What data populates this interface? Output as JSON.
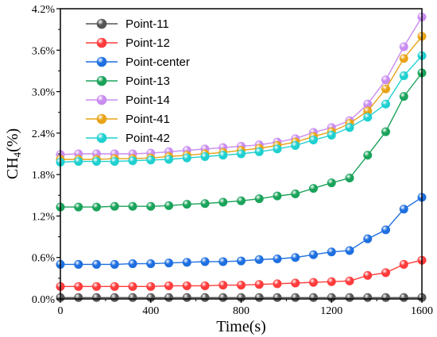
{
  "chart_data": {
    "type": "line",
    "title": "",
    "xlabel": "Time(s)",
    "ylabel_main": "CH",
    "ylabel_sub": "4",
    "ylabel_tail": "(%)",
    "xlim": [
      0,
      1600
    ],
    "ylim": [
      0,
      4.2
    ],
    "xticks": [
      0,
      400,
      800,
      1200,
      1600
    ],
    "yticks": [
      0,
      0.6,
      1.2,
      1.8,
      2.4,
      3.0,
      3.6,
      4.2
    ],
    "ytick_labels": [
      "0.0%",
      "0.6%",
      "1.2%",
      "1.8%",
      "2.4%",
      "3.0%",
      "3.6%",
      "4.2%"
    ],
    "grid": false,
    "legend_position": "top-left",
    "x": [
      0,
      80,
      160,
      240,
      320,
      400,
      480,
      560,
      640,
      720,
      800,
      880,
      960,
      1040,
      1120,
      1200,
      1280,
      1360,
      1440,
      1520,
      1600
    ],
    "series": [
      {
        "name": "Point-11",
        "color": "#555555",
        "values": [
          0.02,
          0.02,
          0.02,
          0.02,
          0.02,
          0.02,
          0.02,
          0.02,
          0.02,
          0.02,
          0.02,
          0.02,
          0.02,
          0.02,
          0.02,
          0.02,
          0.02,
          0.02,
          0.02,
          0.02,
          0.02
        ]
      },
      {
        "name": "Point-12",
        "color": "#ff3b3b",
        "values": [
          0.18,
          0.18,
          0.18,
          0.18,
          0.18,
          0.18,
          0.19,
          0.19,
          0.19,
          0.2,
          0.2,
          0.21,
          0.22,
          0.23,
          0.24,
          0.25,
          0.26,
          0.34,
          0.38,
          0.5,
          0.56
        ]
      },
      {
        "name": "Point-center",
        "color": "#1e6fe0",
        "values": [
          0.5,
          0.5,
          0.5,
          0.5,
          0.51,
          0.51,
          0.52,
          0.53,
          0.54,
          0.54,
          0.55,
          0.57,
          0.58,
          0.6,
          0.64,
          0.68,
          0.7,
          0.87,
          1.0,
          1.3,
          1.47
        ]
      },
      {
        "name": "Point-13",
        "color": "#1aa35a",
        "values": [
          1.33,
          1.33,
          1.33,
          1.34,
          1.34,
          1.34,
          1.35,
          1.37,
          1.38,
          1.4,
          1.42,
          1.45,
          1.49,
          1.52,
          1.6,
          1.68,
          1.75,
          2.08,
          2.42,
          2.93,
          3.27
        ]
      },
      {
        "name": "Point-14",
        "color": "#c98cf0",
        "values": [
          2.09,
          2.1,
          2.1,
          2.1,
          2.1,
          2.11,
          2.13,
          2.15,
          2.17,
          2.19,
          2.21,
          2.23,
          2.27,
          2.32,
          2.41,
          2.48,
          2.58,
          2.82,
          3.17,
          3.65,
          4.08
        ]
      },
      {
        "name": "Point-41",
        "color": "#e8a317",
        "values": [
          2.02,
          2.02,
          2.02,
          2.03,
          2.03,
          2.04,
          2.06,
          2.08,
          2.1,
          2.12,
          2.15,
          2.18,
          2.22,
          2.27,
          2.35,
          2.42,
          2.54,
          2.72,
          3.04,
          3.48,
          3.8
        ]
      },
      {
        "name": "Point-42",
        "color": "#1fd0d0",
        "values": [
          1.98,
          1.99,
          1.99,
          1.99,
          2.0,
          2.01,
          2.02,
          2.04,
          2.06,
          2.08,
          2.1,
          2.13,
          2.17,
          2.22,
          2.3,
          2.37,
          2.48,
          2.63,
          2.82,
          3.23,
          3.52
        ]
      }
    ]
  }
}
